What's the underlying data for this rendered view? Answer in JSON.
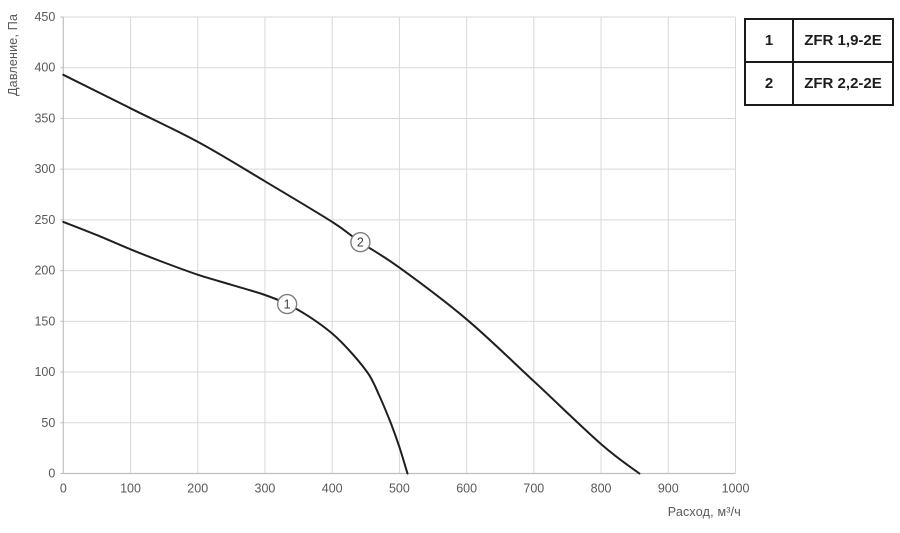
{
  "axes": {
    "y_title": "Давление, Па",
    "x_title": "Расход, м³/ч"
  },
  "legend": {
    "rows": [
      {
        "id": "1",
        "label": "ZFR 1,9-2E"
      },
      {
        "id": "2",
        "label": "ZFR 2,2-2E"
      }
    ]
  },
  "colors": {
    "curve": "#1f1f1f",
    "grid": "#d9d9d9",
    "axis": "#bfbfbf",
    "tick_text": "#595959",
    "marker_fill": "#ffffff",
    "marker_stroke": "#7f7f7f",
    "marker_text": "#404040",
    "legend_border": "#1a1a1a"
  },
  "chart_data": {
    "type": "line",
    "title": "",
    "xlabel": "Расход, м³/ч",
    "ylabel": "Давление, Па",
    "xlim": [
      0,
      1000
    ],
    "ylim": [
      0,
      450
    ],
    "x_ticks": [
      0,
      100,
      200,
      300,
      400,
      500,
      600,
      700,
      800,
      900,
      1000
    ],
    "y_ticks": [
      0,
      50,
      100,
      150,
      200,
      250,
      300,
      350,
      400,
      450
    ],
    "grid": true,
    "legend_position": "top-right-outside",
    "series": [
      {
        "name": "1",
        "label": "ZFR 1,9-2E",
        "points": [
          [
            0,
            248
          ],
          [
            50,
            235
          ],
          [
            100,
            221
          ],
          [
            150,
            208
          ],
          [
            200,
            196
          ],
          [
            250,
            186
          ],
          [
            300,
            176
          ],
          [
            333,
            167
          ],
          [
            365,
            155
          ],
          [
            400,
            138
          ],
          [
            430,
            118
          ],
          [
            455,
            97
          ],
          [
            470,
            77
          ],
          [
            487,
            50
          ],
          [
            500,
            26
          ],
          [
            512,
            0
          ]
        ],
        "marker_at": [
          333,
          167
        ]
      },
      {
        "name": "2",
        "label": "ZFR 2,2-2E",
        "points": [
          [
            0,
            393
          ],
          [
            100,
            360
          ],
          [
            200,
            327
          ],
          [
            300,
            288
          ],
          [
            400,
            248
          ],
          [
            442,
            228
          ],
          [
            500,
            203
          ],
          [
            600,
            152
          ],
          [
            700,
            91
          ],
          [
            800,
            29
          ],
          [
            857,
            0
          ]
        ],
        "marker_at": [
          442,
          228
        ]
      }
    ]
  }
}
